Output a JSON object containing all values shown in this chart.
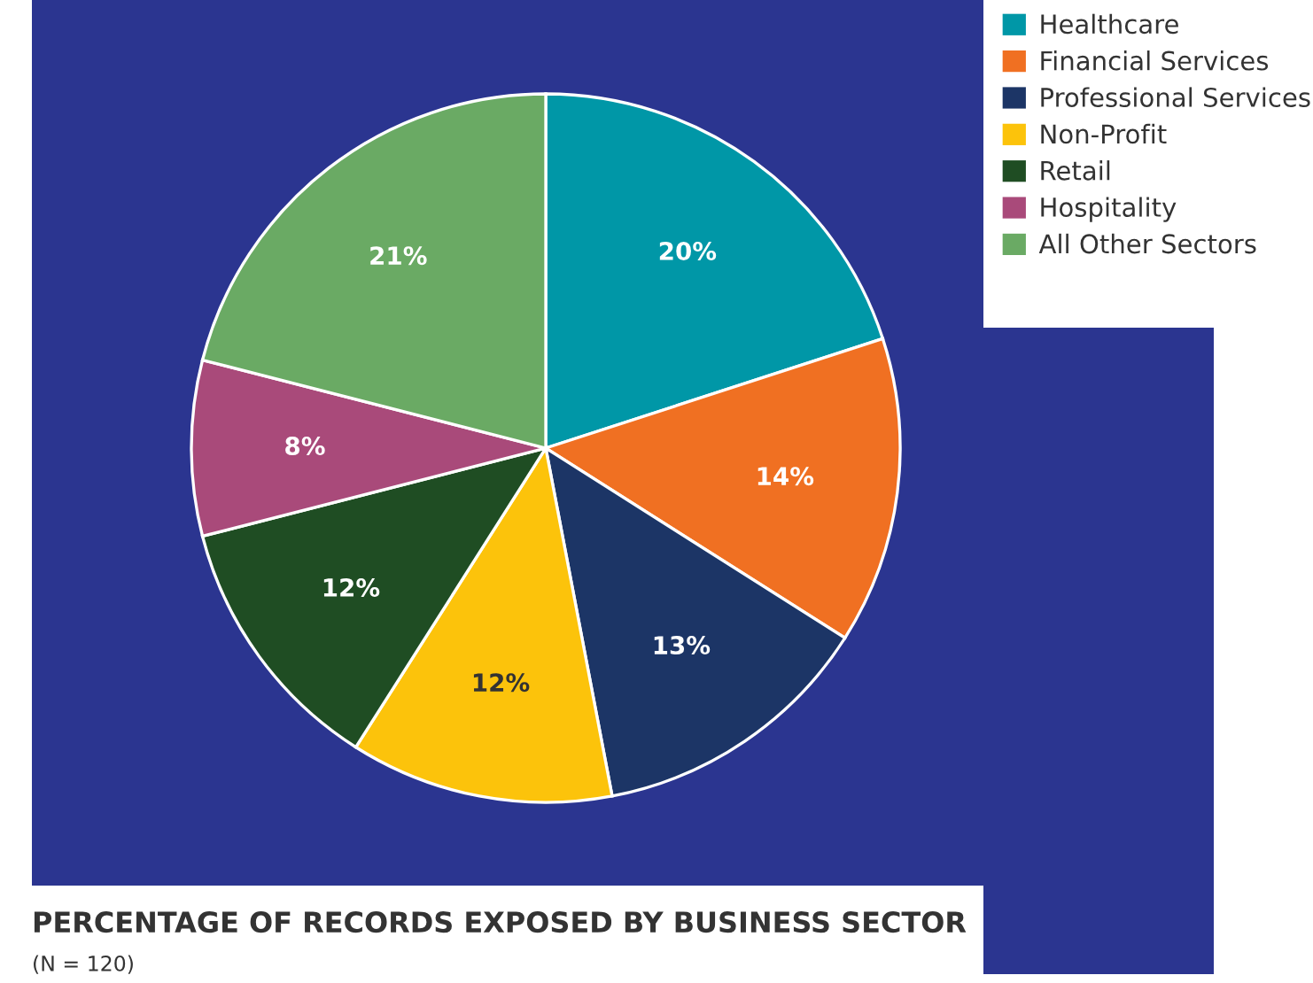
{
  "chart_data": {
    "type": "pie",
    "title": "PERCENTAGE OF RECORDS EXPOSED BY BUSINESS SECTOR",
    "subtitle": "(N = 120)",
    "categories": [
      "Healthcare",
      "Financial Services",
      "Professional Services",
      "Non-Profit",
      "Retail",
      "Hospitality",
      "All Other Sectors"
    ],
    "values": [
      20,
      14,
      13,
      12,
      12,
      8,
      21
    ],
    "colors": [
      "#0097a7",
      "#f07022",
      "#1c3566",
      "#fcc30b",
      "#1f4d23",
      "#a94a7a",
      "#6aaa64"
    ],
    "value_labels": [
      "20%",
      "14%",
      "13%",
      "12%",
      "12%",
      "8%",
      "21%"
    ],
    "legend": "top right"
  }
}
